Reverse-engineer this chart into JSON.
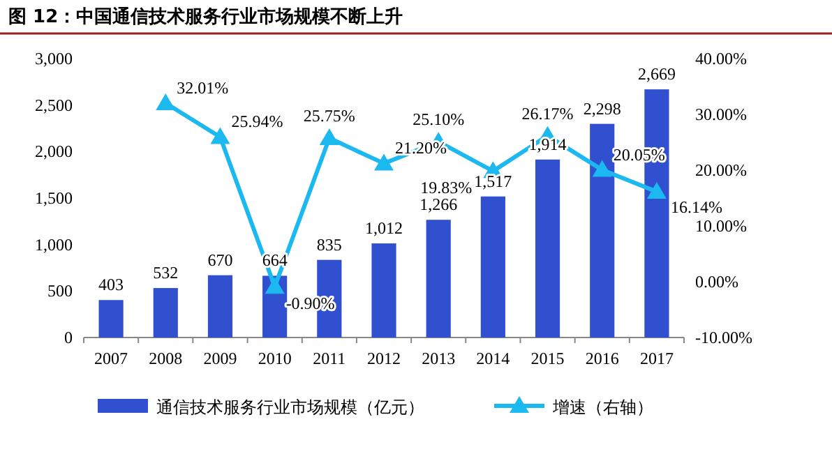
{
  "chart_data": {
    "type": "bar",
    "title": "图 12：中国通信技术服务行业市场规模不断上升",
    "categories": [
      "2007",
      "2008",
      "2009",
      "2010",
      "2011",
      "2012",
      "2013",
      "2014",
      "2015",
      "2016",
      "2017"
    ],
    "series": [
      {
        "name": "通信技术服务行业市场规模（亿元）",
        "color": "#3050d0",
        "values": [
          403,
          532,
          670,
          664,
          835,
          1012,
          1266,
          1517,
          1914,
          2298,
          2669
        ],
        "value_labels": [
          "403",
          "532",
          "670",
          "664",
          "835",
          "1,012",
          "1,266",
          "1,517",
          "1,914",
          "2,298",
          "2,669"
        ]
      },
      {
        "name": "增速（右轴）",
        "type": "line",
        "axis": "y2",
        "color": "#1cb8f0",
        "marker": "triangle",
        "values": [
          null,
          32.01,
          25.94,
          -0.9,
          25.75,
          21.2,
          25.1,
          19.83,
          26.17,
          20.05,
          16.14
        ],
        "value_labels": [
          null,
          "32.01%",
          "25.94%",
          "-0.90%",
          "25.75%",
          "21.20%",
          "25.10%",
          "19.83%",
          "26.17%",
          "20.05%",
          "16.14%"
        ]
      }
    ],
    "ylim": [
      0,
      3000
    ],
    "yticks": [
      0,
      {
        "value": 500,
        "label": "500"
      },
      {
        "value": 1000,
        "label": "1,000"
      },
      {
        "value": 1500,
        "label": "1,500"
      },
      {
        "value": 2000,
        "label": "2,000"
      },
      {
        "value": 2500,
        "label": "2,500"
      },
      {
        "value": 3000,
        "label": "3,000"
      }
    ],
    "y2lim": [
      -10,
      40
    ],
    "y2ticks": [
      {
        "value": -10,
        "label": "-10.00%"
      },
      {
        "value": 0,
        "label": "0.00%"
      },
      {
        "value": 10,
        "label": "10.00%"
      },
      {
        "value": 20,
        "label": "20.00%"
      },
      {
        "value": 30,
        "label": "30.00%"
      },
      {
        "value": 40,
        "label": "40.00%"
      }
    ],
    "legend": "bottom",
    "grid": false
  }
}
